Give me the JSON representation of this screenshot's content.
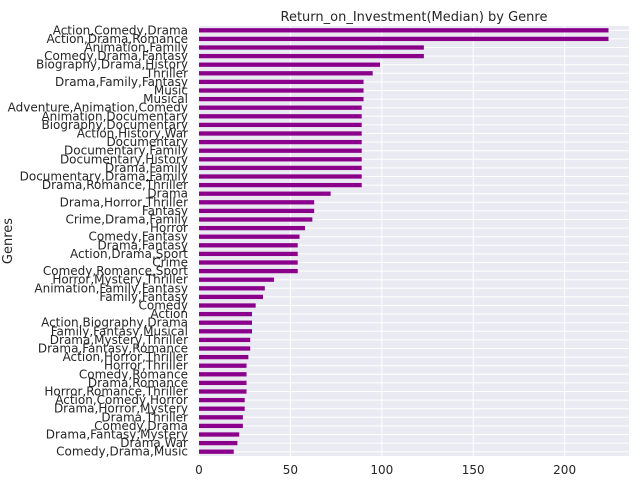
{
  "colors": {
    "bar": "#8b008b",
    "plot_background": "#eaeaf2",
    "grid": "#ffffff",
    "text": "#262626"
  },
  "chart_data": {
    "type": "bar",
    "orientation": "horizontal",
    "title": "Return_on_Investment(Median) by Genre",
    "xlabel": "",
    "ylabel": "Genres",
    "xlim": [
      0,
      240
    ],
    "xticks": [
      0,
      50,
      100,
      150,
      200
    ],
    "grid": true,
    "categories": [
      "Action,Comedy,Drama",
      "Action,Drama,Romance",
      "Animation,Family",
      "Comedy,Drama,Fantasy",
      "Biography,Drama,History",
      "Thriller",
      "Drama,Family,Fantasy",
      "Music",
      "Musical",
      "Adventure,Animation,Comedy",
      "Animation,Documentary",
      "Biography,Documentary",
      "Action,History,War",
      "Documentary",
      "Documentary,Family",
      "Documentary,History",
      "Drama,Family",
      "Documentary,Drama,Family",
      "Drama,Romance,Thriller",
      "Drama",
      "Drama,Horror,Thriller",
      "Fantasy",
      "Crime,Drama,Family",
      "Horror",
      "Comedy,Fantasy",
      "Drama,Fantasy",
      "Action,Drama,Sport",
      "Crime",
      "Comedy,Romance,Sport",
      "Horror,Mystery,Thriller",
      "Animation,Family,Fantasy",
      "Family,Fantasy",
      "Comedy",
      "Action",
      "Action,Biography,Drama",
      "Family,Fantasy,Musical",
      "Drama,Mystery,Thriller",
      "Drama,Fantasy,Romance",
      "Action,Horror,Thriller",
      "Horror,Thriller",
      "Comedy,Romance",
      "Drama,Romance",
      "Horror,Romance,Thriller",
      "Action,Comedy,Horror",
      "Drama,Horror,Mystery",
      "Drama,Thriller",
      "Comedy,Drama",
      "Drama,Fantasy,Mystery",
      "Drama,War",
      "Comedy,Drama,Music"
    ],
    "values": [
      224,
      224,
      123,
      123,
      99,
      95,
      90,
      90,
      90,
      89,
      89,
      89,
      89,
      89,
      89,
      89,
      89,
      89,
      89,
      72,
      63,
      63,
      62,
      58,
      55,
      54,
      54,
      54,
      54,
      41,
      36,
      35,
      31,
      29,
      29,
      29,
      28,
      28,
      27,
      26,
      26,
      26,
      26,
      25,
      25,
      24,
      24,
      22,
      21,
      19
    ]
  }
}
